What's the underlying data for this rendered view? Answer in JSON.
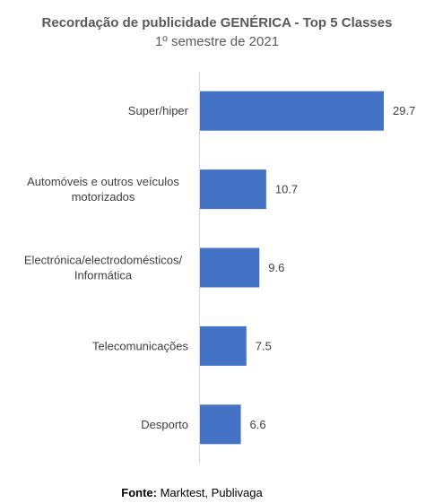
{
  "chart_data": {
    "type": "bar",
    "orientation": "horizontal",
    "title": "Recordação de publicidade GENÉRICA - Top 5 Classes",
    "subtitle": "1º semestre de 2021",
    "categories": [
      [
        "Super/hiper"
      ],
      [
        "Automóveis e outros veículos",
        "motorizados"
      ],
      [
        "Electrónica/electrodomésticos/",
        "Informática"
      ],
      [
        "Telecomunicações"
      ],
      [
        "Desporto"
      ]
    ],
    "values": [
      29.7,
      10.7,
      9.6,
      7.5,
      6.6
    ],
    "value_labels": [
      "29.7",
      "10.7",
      "9.6",
      "7.5",
      "6.6"
    ],
    "xlim": [
      0,
      31
    ],
    "grid": false,
    "legend": "none",
    "bar_color": "#4472C4"
  },
  "source": {
    "label": "Fonte:",
    "text": " Marktest, Publivaga"
  }
}
